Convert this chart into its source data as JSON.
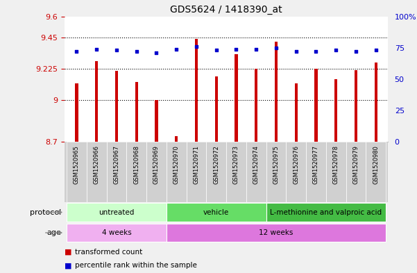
{
  "title": "GDS5624 / 1418390_at",
  "samples": [
    "GSM1520965",
    "GSM1520966",
    "GSM1520967",
    "GSM1520968",
    "GSM1520969",
    "GSM1520970",
    "GSM1520971",
    "GSM1520972",
    "GSM1520973",
    "GSM1520974",
    "GSM1520975",
    "GSM1520976",
    "GSM1520977",
    "GSM1520978",
    "GSM1520979",
    "GSM1520980"
  ],
  "bar_values": [
    9.12,
    9.28,
    9.21,
    9.13,
    9.0,
    8.74,
    9.44,
    9.17,
    9.33,
    9.225,
    9.42,
    9.12,
    9.225,
    9.15,
    9.215,
    9.27
  ],
  "dot_values": [
    72,
    74,
    73,
    72,
    71,
    74,
    76,
    73,
    74,
    74,
    75,
    72,
    72,
    73,
    72,
    73
  ],
  "ylim_left": [
    8.7,
    9.6
  ],
  "ylim_right": [
    0,
    100
  ],
  "yticks_left": [
    8.7,
    9.0,
    9.225,
    9.45,
    9.6
  ],
  "ytick_labels_left": [
    "8.7",
    "9",
    "9.225",
    "9.45",
    "9.6"
  ],
  "yticks_right": [
    0,
    25,
    50,
    75,
    100
  ],
  "ytick_labels_right": [
    "0",
    "25",
    "50",
    "75",
    "100%"
  ],
  "hlines": [
    9.0,
    9.225,
    9.45
  ],
  "bar_color": "#cc0000",
  "dot_color": "#0000cc",
  "bar_width": 0.15,
  "protocol_groups": [
    {
      "label": "untreated",
      "start": 0,
      "end": 5,
      "color": "#ccffcc"
    },
    {
      "label": "vehicle",
      "start": 5,
      "end": 10,
      "color": "#66dd66"
    },
    {
      "label": "L-methionine and valproic acid",
      "start": 10,
      "end": 16,
      "color": "#44bb44"
    }
  ],
  "age_groups": [
    {
      "label": "4 weeks",
      "start": 0,
      "end": 5,
      "color": "#f0b0f0"
    },
    {
      "label": "12 weeks",
      "start": 5,
      "end": 16,
      "color": "#dd77dd"
    }
  ],
  "legend_items": [
    {
      "label": "transformed count",
      "color": "#cc0000"
    },
    {
      "label": "percentile rank within the sample",
      "color": "#0000cc"
    }
  ],
  "protocol_label": "protocol",
  "age_label": "age",
  "left_axis_color": "#cc0000",
  "right_axis_color": "#0000cc",
  "background_color": "#f0f0f0",
  "plot_bg_color": "#ffffff",
  "sample_label_bg": "#d0d0d0",
  "title_fontsize": 10,
  "tick_fontsize": 8,
  "sample_fontsize": 6,
  "row_fontsize": 7.5
}
